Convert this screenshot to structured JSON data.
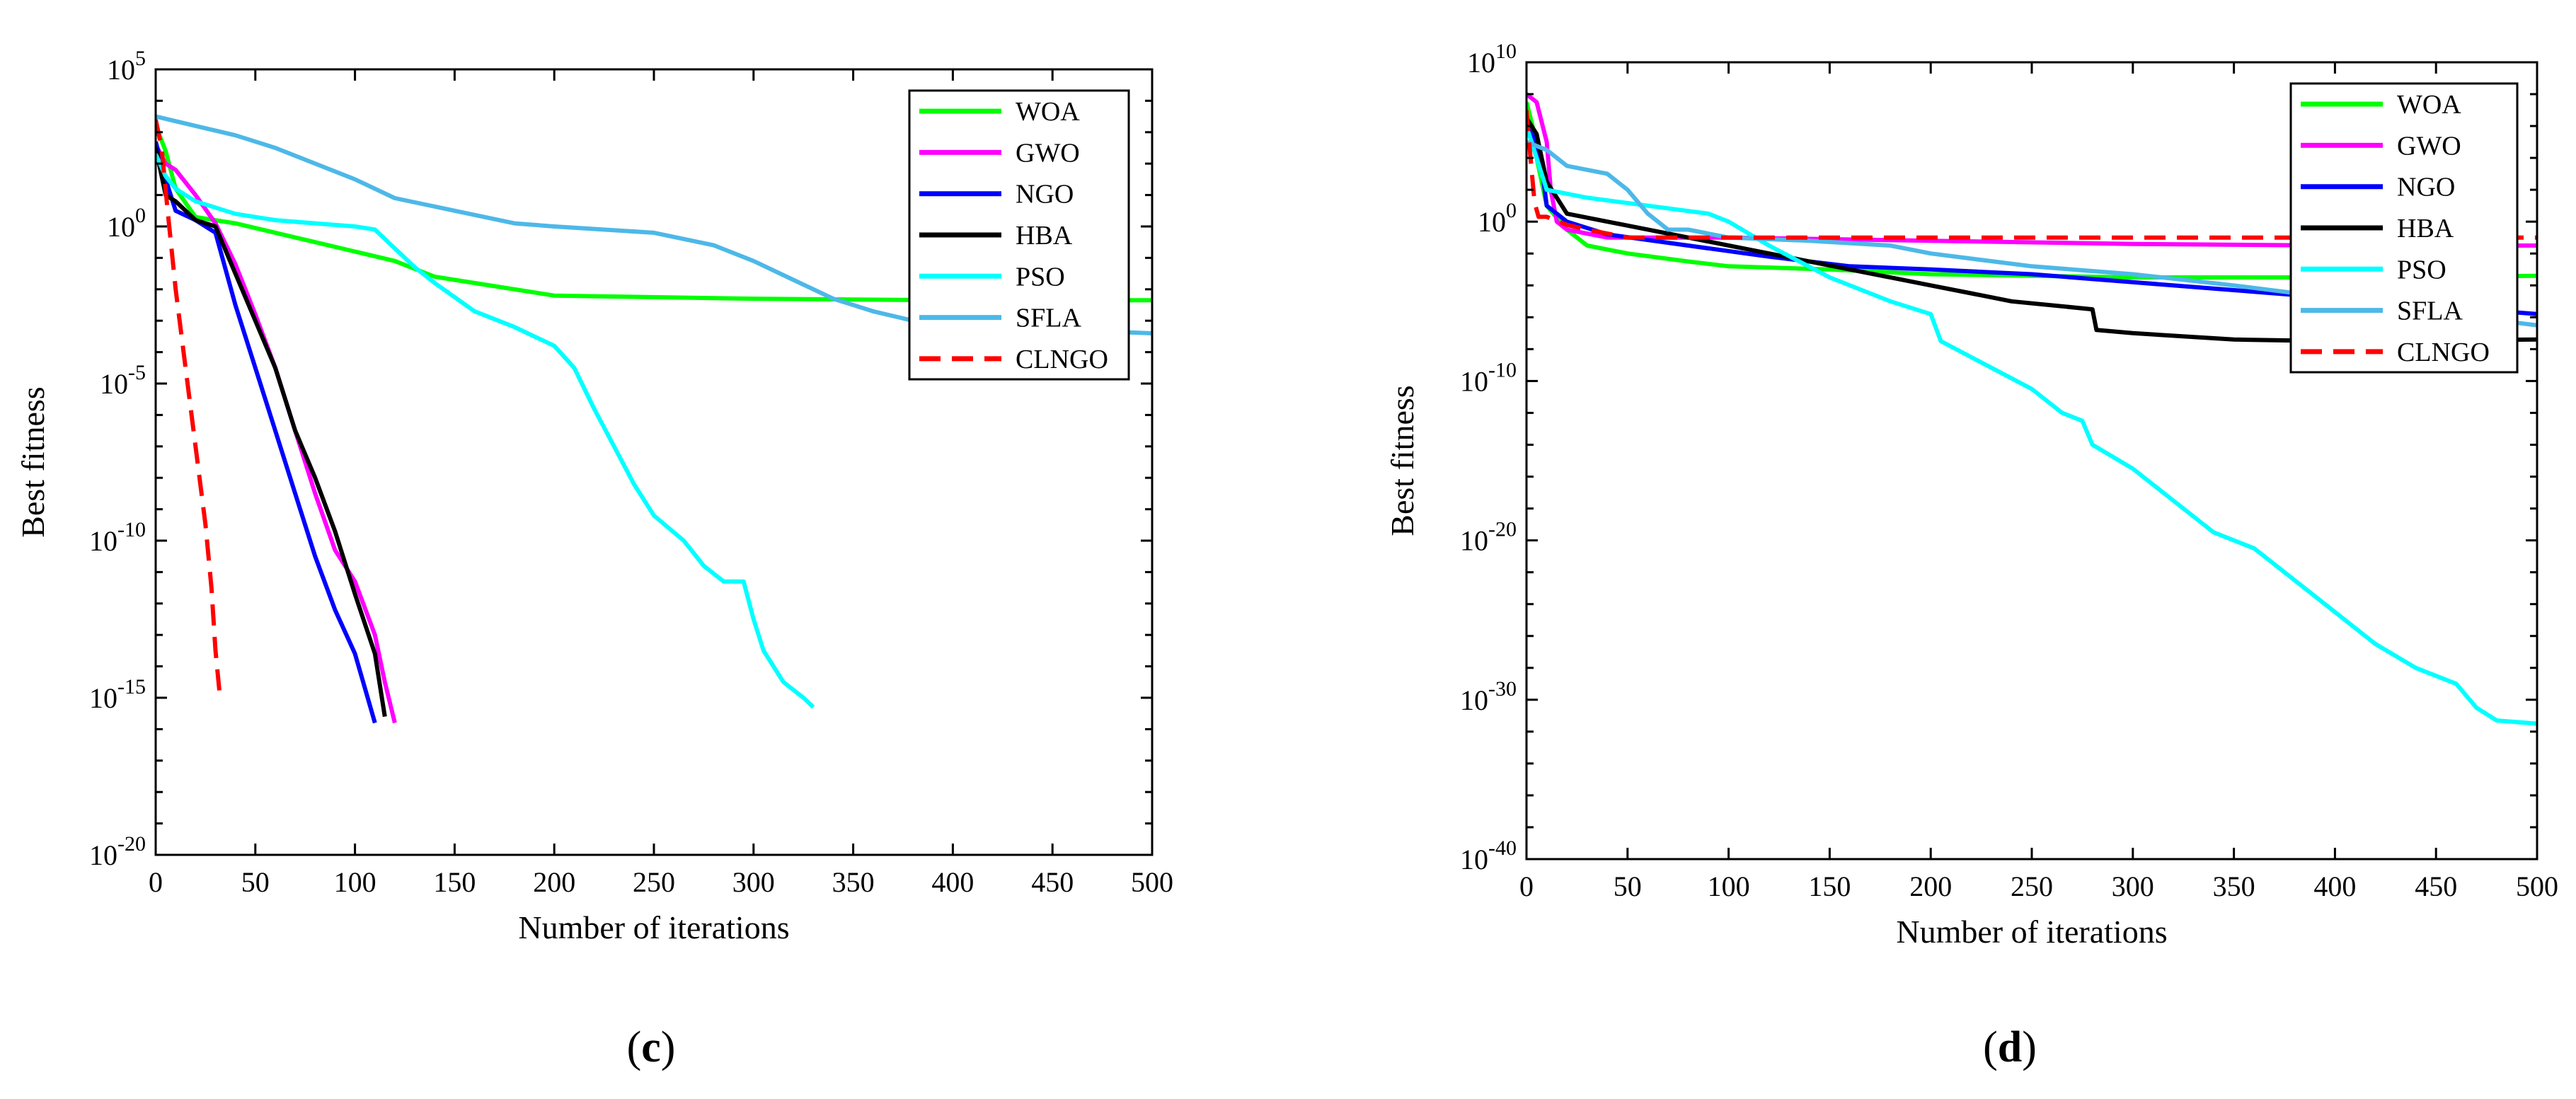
{
  "chart_data": [
    {
      "type": "line",
      "panel_label": "c",
      "xlabel": "Number of iterations",
      "ylabel": "Best fitness",
      "x_ticks": [
        0,
        50,
        100,
        150,
        200,
        250,
        300,
        350,
        400,
        450,
        500
      ],
      "xlim": [
        0,
        500
      ],
      "y_scale": "log",
      "y_ticks": [
        {
          "base": "10",
          "exp": "5",
          "value": 5
        },
        {
          "base": "10",
          "exp": "0",
          "value": 0
        },
        {
          "base": "10",
          "exp": "-5",
          "value": -5
        },
        {
          "base": "10",
          "exp": "-10",
          "value": -10
        },
        {
          "base": "10",
          "exp": "-15",
          "value": -15
        },
        {
          "base": "10",
          "exp": "-20",
          "value": -20
        }
      ],
      "ylim_log10": [
        -20,
        5
      ],
      "legend_position": "top-right",
      "series": [
        {
          "name": "WOA",
          "color": "#00ff00",
          "dashed": false,
          "points": [
            [
              0,
              3.2
            ],
            [
              5,
              2.4
            ],
            [
              10,
              1.2
            ],
            [
              20,
              0.3
            ],
            [
              40,
              0.1
            ],
            [
              60,
              -0.2
            ],
            [
              80,
              -0.5
            ],
            [
              100,
              -0.8
            ],
            [
              120,
              -1.1
            ],
            [
              140,
              -1.6
            ],
            [
              170,
              -1.9
            ],
            [
              200,
              -2.2
            ],
            [
              300,
              -2.3
            ],
            [
              400,
              -2.35
            ],
            [
              500,
              -2.35
            ]
          ]
        },
        {
          "name": "GWO",
          "color": "#ff00ff",
          "dashed": false,
          "points": [
            [
              0,
              2.6
            ],
            [
              5,
              2.0
            ],
            [
              10,
              1.8
            ],
            [
              20,
              1.0
            ],
            [
              30,
              0.1
            ],
            [
              40,
              -1.2
            ],
            [
              50,
              -2.8
            ],
            [
              60,
              -4.5
            ],
            [
              70,
              -6.5
            ],
            [
              80,
              -8.5
            ],
            [
              90,
              -10.3
            ],
            [
              100,
              -11.3
            ],
            [
              110,
              -13.0
            ],
            [
              115,
              -14.5
            ],
            [
              120,
              -15.8
            ]
          ]
        },
        {
          "name": "NGO",
          "color": "#0000ff",
          "dashed": false,
          "points": [
            [
              0,
              2.7
            ],
            [
              5,
              1.5
            ],
            [
              10,
              0.5
            ],
            [
              20,
              0.2
            ],
            [
              30,
              -0.2
            ],
            [
              40,
              -2.5
            ],
            [
              50,
              -4.5
            ],
            [
              60,
              -6.5
            ],
            [
              70,
              -8.5
            ],
            [
              80,
              -10.5
            ],
            [
              90,
              -12.2
            ],
            [
              100,
              -13.6
            ],
            [
              110,
              -15.8
            ]
          ]
        },
        {
          "name": "HBA",
          "color": "#000000",
          "dashed": false,
          "points": [
            [
              0,
              2.5
            ],
            [
              5,
              1.0
            ],
            [
              10,
              0.8
            ],
            [
              20,
              0.2
            ],
            [
              30,
              0.0
            ],
            [
              40,
              -1.5
            ],
            [
              50,
              -3.0
            ],
            [
              60,
              -4.5
            ],
            [
              70,
              -6.5
            ],
            [
              80,
              -8.0
            ],
            [
              90,
              -9.7
            ],
            [
              100,
              -11.7
            ],
            [
              110,
              -13.6
            ],
            [
              115,
              -15.6
            ]
          ]
        },
        {
          "name": "PSO",
          "color": "#00ffff",
          "dashed": false,
          "points": [
            [
              0,
              2.3
            ],
            [
              5,
              1.6
            ],
            [
              10,
              1.2
            ],
            [
              20,
              0.8
            ],
            [
              40,
              0.4
            ],
            [
              60,
              0.2
            ],
            [
              80,
              0.1
            ],
            [
              100,
              0.0
            ],
            [
              110,
              -0.1
            ],
            [
              120,
              -0.7
            ],
            [
              130,
              -1.3
            ],
            [
              140,
              -1.8
            ],
            [
              160,
              -2.7
            ],
            [
              180,
              -3.2
            ],
            [
              200,
              -3.8
            ],
            [
              210,
              -4.5
            ],
            [
              220,
              -5.8
            ],
            [
              230,
              -7.0
            ],
            [
              240,
              -8.2
            ],
            [
              250,
              -9.2
            ],
            [
              265,
              -10.0
            ],
            [
              275,
              -10.8
            ],
            [
              285,
              -11.3
            ],
            [
              295,
              -11.3
            ],
            [
              300,
              -12.5
            ],
            [
              305,
              -13.5
            ],
            [
              315,
              -14.5
            ],
            [
              325,
              -15.0
            ],
            [
              330,
              -15.3
            ]
          ]
        },
        {
          "name": "SFLA",
          "color": "#4db8e8",
          "dashed": false,
          "points": [
            [
              0,
              3.5
            ],
            [
              20,
              3.2
            ],
            [
              40,
              2.9
            ],
            [
              60,
              2.5
            ],
            [
              80,
              2.0
            ],
            [
              100,
              1.5
            ],
            [
              120,
              0.9
            ],
            [
              150,
              0.5
            ],
            [
              180,
              0.1
            ],
            [
              200,
              0.0
            ],
            [
              250,
              -0.2
            ],
            [
              280,
              -0.6
            ],
            [
              300,
              -1.1
            ],
            [
              320,
              -1.7
            ],
            [
              340,
              -2.3
            ],
            [
              360,
              -2.7
            ],
            [
              380,
              -3.0
            ],
            [
              420,
              -3.1
            ],
            [
              460,
              -3.3
            ],
            [
              500,
              -3.4
            ]
          ]
        },
        {
          "name": "CLNGO",
          "color": "#ff0000",
          "dashed": true,
          "points": [
            [
              0,
              3.4
            ],
            [
              3,
              2.5
            ],
            [
              6,
              0.5
            ],
            [
              10,
              -2.0
            ],
            [
              15,
              -4.5
            ],
            [
              20,
              -7.0
            ],
            [
              25,
              -9.5
            ],
            [
              28,
              -11.5
            ],
            [
              30,
              -13.5
            ],
            [
              32,
              -14.8
            ]
          ]
        }
      ]
    },
    {
      "type": "line",
      "panel_label": "d",
      "xlabel": "Number of iterations",
      "ylabel": "Best fitness",
      "x_ticks": [
        0,
        50,
        100,
        150,
        200,
        250,
        300,
        350,
        400,
        450,
        500
      ],
      "xlim": [
        0,
        500
      ],
      "y_scale": "log",
      "y_ticks": [
        {
          "base": "10",
          "exp": "10",
          "value": 10
        },
        {
          "base": "10",
          "exp": "0",
          "value": 0
        },
        {
          "base": "10",
          "exp": "-10",
          "value": -10
        },
        {
          "base": "10",
          "exp": "-20",
          "value": -20
        },
        {
          "base": "10",
          "exp": "-30",
          "value": -30
        },
        {
          "base": "10",
          "exp": "-40",
          "value": -40
        }
      ],
      "ylim_log10": [
        -40,
        10
      ],
      "legend_position": "top-right",
      "series": [
        {
          "name": "WOA",
          "color": "#00ff00",
          "dashed": false,
          "points": [
            [
              0,
              7.5
            ],
            [
              3,
              6.0
            ],
            [
              5,
              4.0
            ],
            [
              10,
              1.0
            ],
            [
              20,
              -0.5
            ],
            [
              30,
              -1.5
            ],
            [
              50,
              -2.0
            ],
            [
              80,
              -2.5
            ],
            [
              100,
              -2.8
            ],
            [
              150,
              -3.0
            ],
            [
              200,
              -3.3
            ],
            [
              300,
              -3.5
            ],
            [
              400,
              -3.5
            ],
            [
              500,
              -3.4
            ]
          ]
        },
        {
          "name": "GWO",
          "color": "#ff00ff",
          "dashed": false,
          "points": [
            [
              0,
              8.0
            ],
            [
              5,
              7.5
            ],
            [
              10,
              5.0
            ],
            [
              12,
              2.0
            ],
            [
              15,
              0.0
            ],
            [
              20,
              -0.5
            ],
            [
              40,
              -1.0
            ],
            [
              100,
              -1.0
            ],
            [
              200,
              -1.2
            ],
            [
              300,
              -1.4
            ],
            [
              400,
              -1.5
            ],
            [
              500,
              -1.5
            ]
          ]
        },
        {
          "name": "NGO",
          "color": "#0000ff",
          "dashed": false,
          "points": [
            [
              0,
              6.0
            ],
            [
              5,
              5.0
            ],
            [
              8,
              3.0
            ],
            [
              10,
              1.0
            ],
            [
              20,
              0.0
            ],
            [
              40,
              -0.8
            ],
            [
              80,
              -1.5
            ],
            [
              120,
              -2.2
            ],
            [
              160,
              -2.8
            ],
            [
              200,
              -3.0
            ],
            [
              250,
              -3.3
            ],
            [
              300,
              -3.8
            ],
            [
              350,
              -4.3
            ],
            [
              400,
              -4.8
            ],
            [
              450,
              -5.3
            ],
            [
              500,
              -5.8
            ]
          ]
        },
        {
          "name": "HBA",
          "color": "#000000",
          "dashed": false,
          "points": [
            [
              0,
              6.5
            ],
            [
              5,
              5.5
            ],
            [
              10,
              2.5
            ],
            [
              20,
              0.5
            ],
            [
              40,
              0.0
            ],
            [
              80,
              -1.0
            ],
            [
              120,
              -2.0
            ],
            [
              160,
              -3.0
            ],
            [
              200,
              -4.0
            ],
            [
              220,
              -4.5
            ],
            [
              240,
              -5.0
            ],
            [
              280,
              -5.5
            ],
            [
              282,
              -6.8
            ],
            [
              300,
              -7.0
            ],
            [
              350,
              -7.4
            ],
            [
              400,
              -7.5
            ],
            [
              500,
              -7.4
            ]
          ]
        },
        {
          "name": "PSO",
          "color": "#00ffff",
          "dashed": false,
          "points": [
            [
              0,
              6.0
            ],
            [
              5,
              4.0
            ],
            [
              10,
              2.0
            ],
            [
              30,
              1.5
            ],
            [
              60,
              1.0
            ],
            [
              90,
              0.5
            ],
            [
              100,
              0.0
            ],
            [
              120,
              -1.5
            ],
            [
              150,
              -3.5
            ],
            [
              180,
              -5.0
            ],
            [
              200,
              -5.8
            ],
            [
              205,
              -7.5
            ],
            [
              220,
              -8.5
            ],
            [
              250,
              -10.5
            ],
            [
              265,
              -12.0
            ],
            [
              275,
              -12.5
            ],
            [
              280,
              -14.0
            ],
            [
              300,
              -15.5
            ],
            [
              320,
              -17.5
            ],
            [
              340,
              -19.5
            ],
            [
              360,
              -20.5
            ],
            [
              380,
              -22.5
            ],
            [
              400,
              -24.5
            ],
            [
              420,
              -26.5
            ],
            [
              440,
              -28.0
            ],
            [
              460,
              -29.0
            ],
            [
              470,
              -30.5
            ],
            [
              480,
              -31.3
            ],
            [
              500,
              -31.5
            ]
          ]
        },
        {
          "name": "SFLA",
          "color": "#4db8e8",
          "dashed": false,
          "points": [
            [
              0,
              5.0
            ],
            [
              10,
              4.5
            ],
            [
              20,
              3.5
            ],
            [
              40,
              3.0
            ],
            [
              50,
              2.0
            ],
            [
              60,
              0.5
            ],
            [
              70,
              -0.5
            ],
            [
              80,
              -0.5
            ],
            [
              100,
              -1.0
            ],
            [
              140,
              -1.2
            ],
            [
              180,
              -1.5
            ],
            [
              200,
              -2.0
            ],
            [
              250,
              -2.8
            ],
            [
              300,
              -3.3
            ],
            [
              350,
              -4.0
            ],
            [
              400,
              -4.8
            ],
            [
              450,
              -5.8
            ],
            [
              480,
              -6.2
            ],
            [
              500,
              -6.5
            ]
          ]
        },
        {
          "name": "CLNGO",
          "color": "#ff0000",
          "dashed": true,
          "points": [
            [
              0,
              7.0
            ],
            [
              2,
              4.0
            ],
            [
              4,
              1.2
            ],
            [
              6,
              0.3
            ],
            [
              10,
              0.3
            ],
            [
              20,
              -0.2
            ],
            [
              30,
              -0.5
            ],
            [
              50,
              -1.0
            ],
            [
              100,
              -1.0
            ],
            [
              200,
              -1.0
            ],
            [
              300,
              -1.0
            ],
            [
              400,
              -1.0
            ],
            [
              500,
              -1.0
            ]
          ]
        }
      ]
    }
  ]
}
